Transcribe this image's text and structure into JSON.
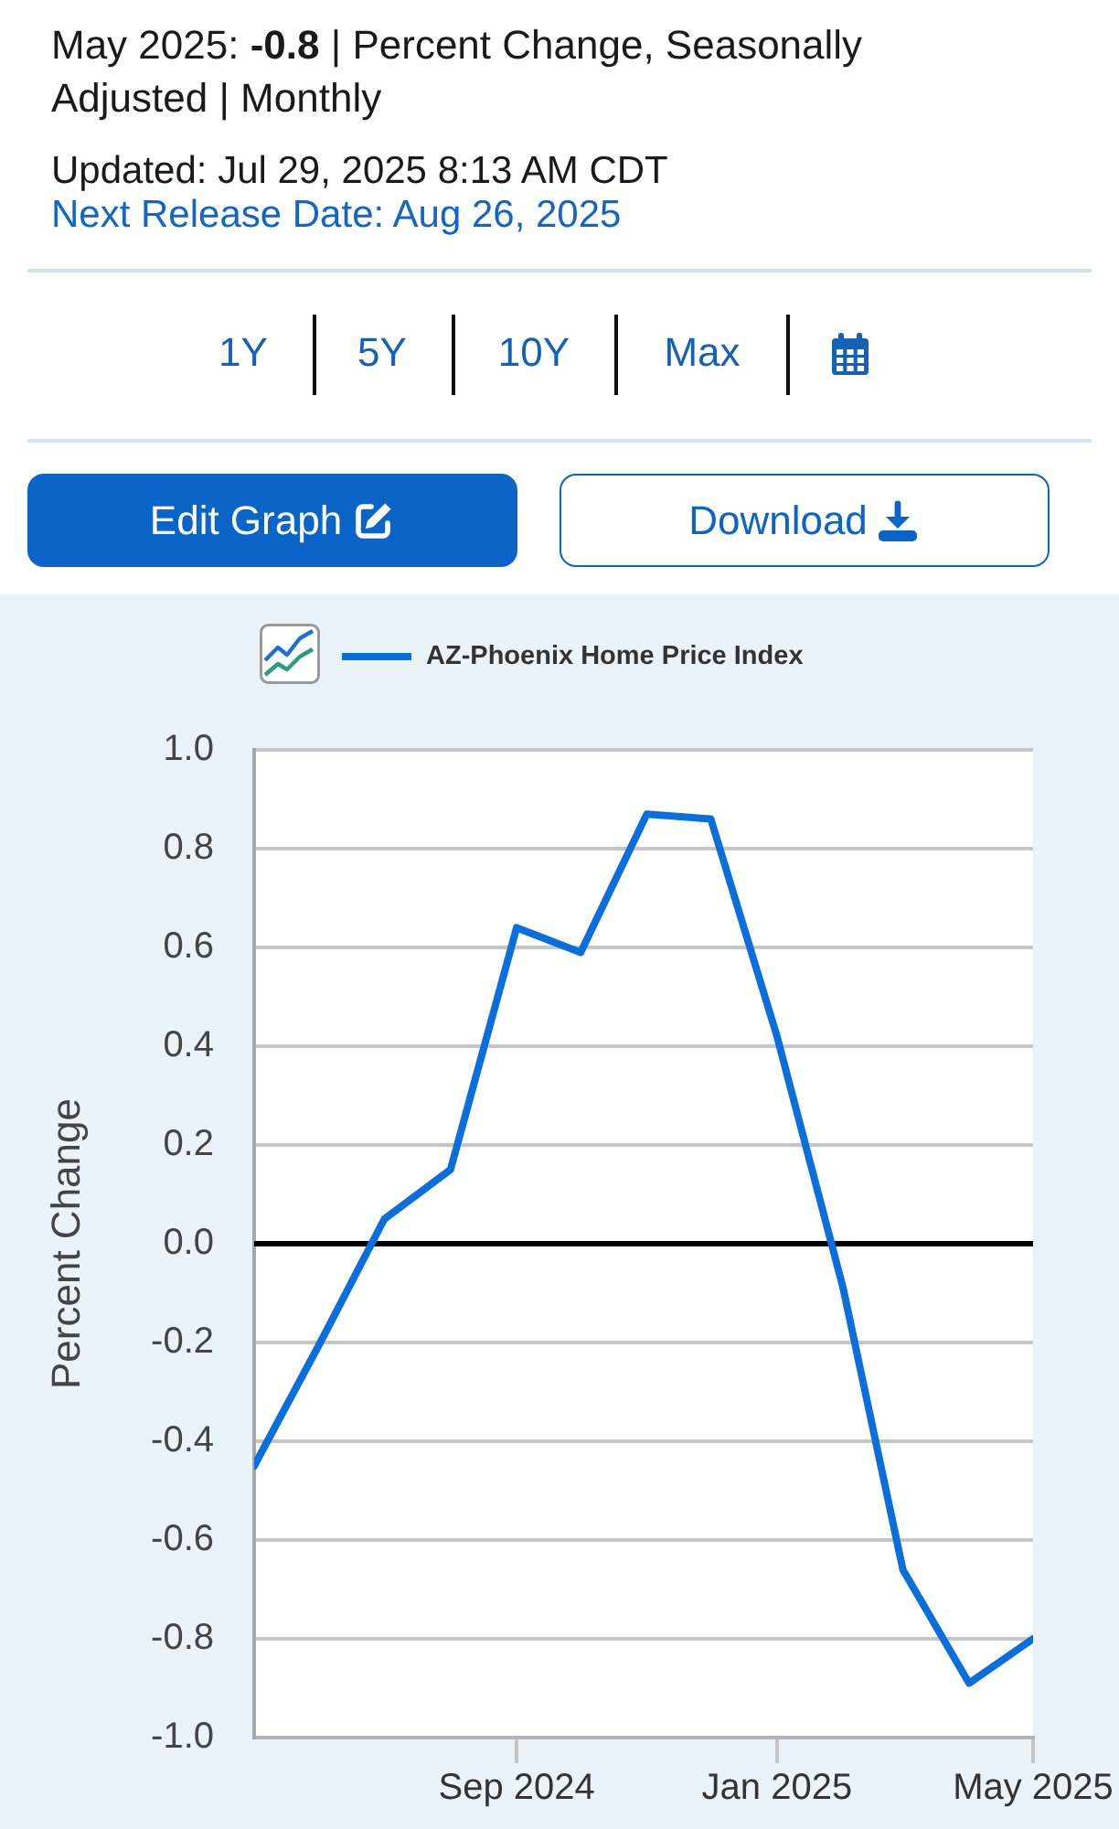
{
  "chart_data": {
    "type": "line",
    "title": "May 2025: -0.8 | Percent Change, Seasonally Adjusted | Monthly",
    "subtitle": "Updated: Jul 29, 2025 8:13 AM CDT",
    "annotations": [
      "Next Release Date: Aug 26, 2025",
      "1Y",
      "5Y",
      "10Y",
      "Max",
      "Edit Graph",
      "Download"
    ],
    "ylabel": "Percent Change",
    "x": [
      "2024-05",
      "2024-06",
      "2024-07",
      "2024-08",
      "2024-09",
      "2024-10",
      "2024-11",
      "2024-12",
      "2025-01",
      "2025-02",
      "2025-03",
      "2025-04",
      "2025-05"
    ],
    "series": [
      {
        "name": "AZ-Phoenix Home Price Index",
        "color": "#0a6fdc",
        "values": [
          -0.45,
          -0.2,
          0.05,
          0.15,
          0.64,
          0.59,
          0.87,
          0.86,
          0.42,
          -0.09,
          -0.66,
          -0.89,
          -0.8
        ]
      }
    ],
    "xlim": [
      "2024-05",
      "2025-05"
    ],
    "xticks": [
      {
        "value": "2024-09",
        "label": "Sep 2024"
      },
      {
        "value": "2025-01",
        "label": "Jan 2025"
      },
      {
        "value": "2025-05",
        "label": "May 2025"
      }
    ],
    "ylim": [
      -1,
      1
    ],
    "yticks": [
      {
        "value": -1,
        "label": "-1.0"
      },
      {
        "value": -0.8,
        "label": "-0.8"
      },
      {
        "value": -0.6,
        "label": "-0.6"
      },
      {
        "value": -0.4,
        "label": "-0.4"
      },
      {
        "value": -0.2,
        "label": "-0.2"
      },
      {
        "value": 0,
        "label": "0.0"
      },
      {
        "value": 0.2,
        "label": "0.2"
      },
      {
        "value": 0.4,
        "label": "0.4"
      },
      {
        "value": 0.6,
        "label": "0.6"
      },
      {
        "value": 0.8,
        "label": "0.8"
      },
      {
        "value": 1,
        "label": "1.0"
      }
    ],
    "grid": "y",
    "legend": "top left",
    "ref_lines": [
      {
        "axis": "y",
        "value": 0,
        "color": "#000000"
      }
    ]
  }
}
